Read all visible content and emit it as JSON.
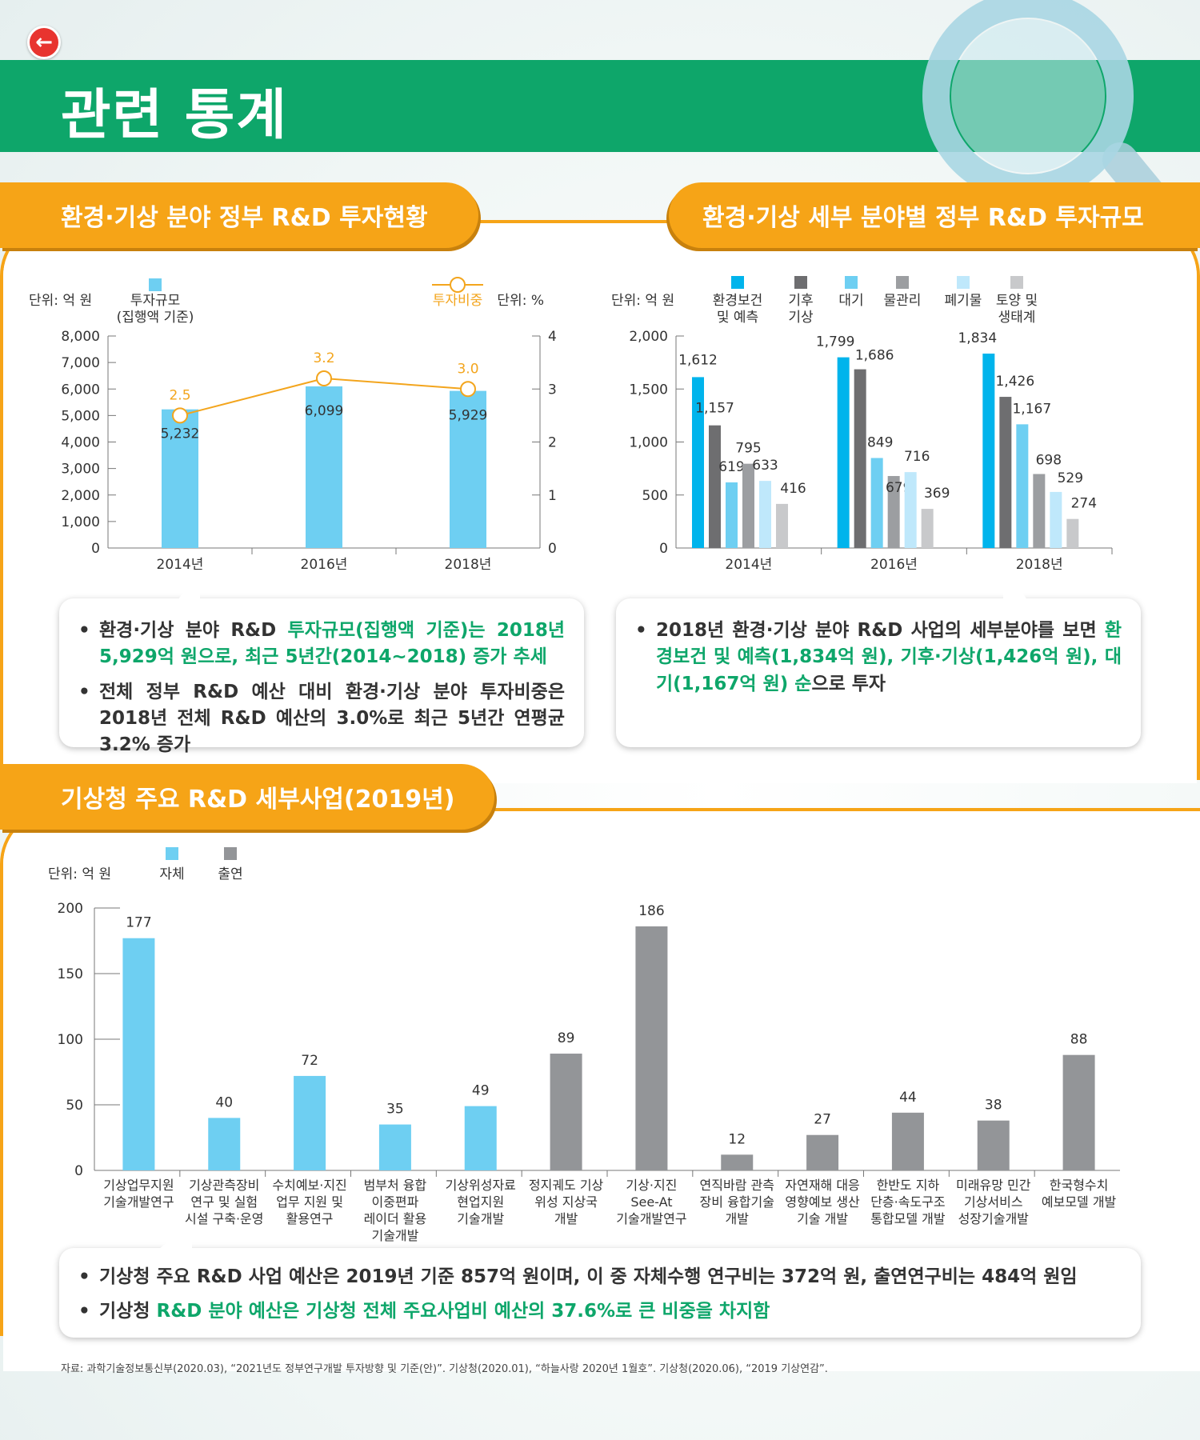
{
  "header": {
    "title": "관련 통계"
  },
  "sections": {
    "s1_title": "환경·기상 분야 정부 R&D 투자현황",
    "s2_title": "환경·기상 세부 분야별 정부 R&D 투자규모",
    "s3_title": "기상청 주요 R&D 세부사업(2019년)"
  },
  "chart_data": [
    {
      "type": "bar",
      "title": "환경·기상 분야 정부 R&D 투자현황",
      "unit_left": "단위: 억 원",
      "unit_right": "단위: %",
      "legend_bar": "투자규모",
      "legend_bar_sub": "(집행액 기준)",
      "legend_line": "투자비중",
      "categories": [
        "2014년",
        "2016년",
        "2018년"
      ],
      "series": [
        {
          "name": "투자규모",
          "values": [
            5232,
            6099,
            5929
          ],
          "labels": [
            "5,232",
            "6,099",
            "5,929"
          ]
        },
        {
          "name": "투자비중",
          "type": "line",
          "axis": "right",
          "values": [
            2.5,
            3.2,
            3.0
          ],
          "labels": [
            "2.5",
            "3.2",
            "3.0"
          ]
        }
      ],
      "y_ticks": [
        "0",
        "1,000",
        "2,000",
        "3,000",
        "4,000",
        "5,000",
        "6,000",
        "7,000",
        "8,000"
      ],
      "y2_ticks": [
        "0",
        "1",
        "2",
        "3",
        "4"
      ],
      "ylim": [
        0,
        8000
      ],
      "y2lim": [
        0,
        4
      ],
      "colors": {
        "bar": "#6ecff2",
        "line": "#f3a51d"
      }
    },
    {
      "type": "bar",
      "title": "환경·기상 세부 분야별 정부 R&D 투자규모",
      "unit_left": "단위: 억 원",
      "categories": [
        "2014년",
        "2016년",
        "2018년"
      ],
      "series": [
        {
          "name": "환경보건\n및 예측",
          "color": "#00b4ec",
          "values": [
            1612,
            1799,
            1834
          ],
          "labels": [
            "1,612",
            "1,799",
            "1,834"
          ]
        },
        {
          "name": "기후\n기상",
          "color": "#6e6e70",
          "values": [
            1157,
            1686,
            1426
          ],
          "labels": [
            "1,157",
            "1,686",
            "1,426"
          ]
        },
        {
          "name": "대기",
          "color": "#6ecff2",
          "values": [
            619,
            849,
            1167
          ],
          "labels": [
            "619",
            "849",
            "1,167"
          ]
        },
        {
          "name": "물관리",
          "color": "#9c9ea1",
          "values": [
            795,
            679,
            698
          ],
          "labels": [
            "795",
            "679",
            "698"
          ]
        },
        {
          "name": "폐기물",
          "color": "#bfe8fb",
          "values": [
            633,
            716,
            529
          ],
          "labels": [
            "633",
            "716",
            "529"
          ]
        },
        {
          "name": "토양 및\n생태계",
          "color": "#c8c9cb",
          "values": [
            416,
            369,
            274
          ],
          "labels": [
            "416",
            "369",
            "274"
          ]
        }
      ],
      "y_ticks": [
        "0",
        "500",
        "1,000",
        "1,500",
        "2,000"
      ],
      "ylim": [
        0,
        2000
      ]
    },
    {
      "type": "bar",
      "title": "기상청 주요 R&D 세부사업(2019년)",
      "unit_left": "단위: 억 원",
      "legend": [
        {
          "name": "자체",
          "color": "#6ecff2"
        },
        {
          "name": "출연",
          "color": "#939598"
        }
      ],
      "categories": [
        "기상업무지원\n기술개발연구",
        "기상관측장비\n연구 및 실험\n시설 구축·운영",
        "수치예보·지진\n업무 지원 및\n활용연구",
        "범부처 융합\n이중편파\n레이더 활용\n기술개발",
        "기상위성자료\n현업지원\n기술개발",
        "정지궤도 기상\n위성 지상국\n개발",
        "기상·지진\nSee-At\n기술개발연구",
        "연직바람 관측\n장비 융합기술\n개발",
        "자연재해 대응\n영향예보 생산\n기술 개발",
        "한반도 지하\n단층·속도구조\n통합모델 개발",
        "미래유망 민간\n기상서비스\n성장기술개발",
        "한국형수치\n예보모델 개발"
      ],
      "values": [
        177,
        40,
        72,
        35,
        49,
        89,
        186,
        12,
        27,
        44,
        38,
        88
      ],
      "types": [
        "자체",
        "자체",
        "자체",
        "자체",
        "자체",
        "출연",
        "출연",
        "출연",
        "출연",
        "출연",
        "출연",
        "출연"
      ],
      "y_ticks": [
        "0",
        "50",
        "100",
        "150",
        "200"
      ],
      "ylim": [
        0,
        200
      ]
    }
  ],
  "notes": {
    "n1": [
      {
        "parts": [
          {
            "t": "환경·기상 분야 R&D ",
            "g": false
          },
          {
            "t": "투자규모(집행액 기준)는 2018년 5,929억 원으로, 최근 5년간(2014~2018) 증가 추세",
            "g": true
          }
        ]
      },
      {
        "parts": [
          {
            "t": "전체 정부 R&D 예산 대비 환경·기상 분야 투자비중은 2018년 전체 R&D 예산의 3.0%로 최근 5년간 연평균 3.2% 증가",
            "g": false
          }
        ]
      }
    ],
    "n2": [
      {
        "parts": [
          {
            "t": "2018년 환경·기상 분야 R&D 사업의 세부분야를 보면 ",
            "g": false
          },
          {
            "t": "환경보건 및 예측(1,834억 원), 기후·기상(1,426억 원), 대기(1,167억 원) 순",
            "g": true
          },
          {
            "t": "으로 투자",
            "g": false
          }
        ]
      }
    ],
    "n3": [
      {
        "parts": [
          {
            "t": "기상청 주요 R&D 사업 예산은 2019년 기준 857억 원이며, 이 중 자체수행 연구비는 372억 원, 출연연구비는 484억 원임",
            "g": false
          }
        ]
      },
      {
        "parts": [
          {
            "t": "기상청 ",
            "g": false
          },
          {
            "t": "R&D 분야 예산은 기상청 전체 주요사업비 예산의 37.6%로 큰 비중을 차지함",
            "g": true
          }
        ]
      }
    ]
  },
  "source": "자료: 과학기술정보통신부(2020.03), “2021년도 정부연구개발 투자방향 및 기준(안)”. 기상청(2020.01), “하늘사랑 2020년 1월호”. 기상청(2020.06), “2019 기상연감”."
}
